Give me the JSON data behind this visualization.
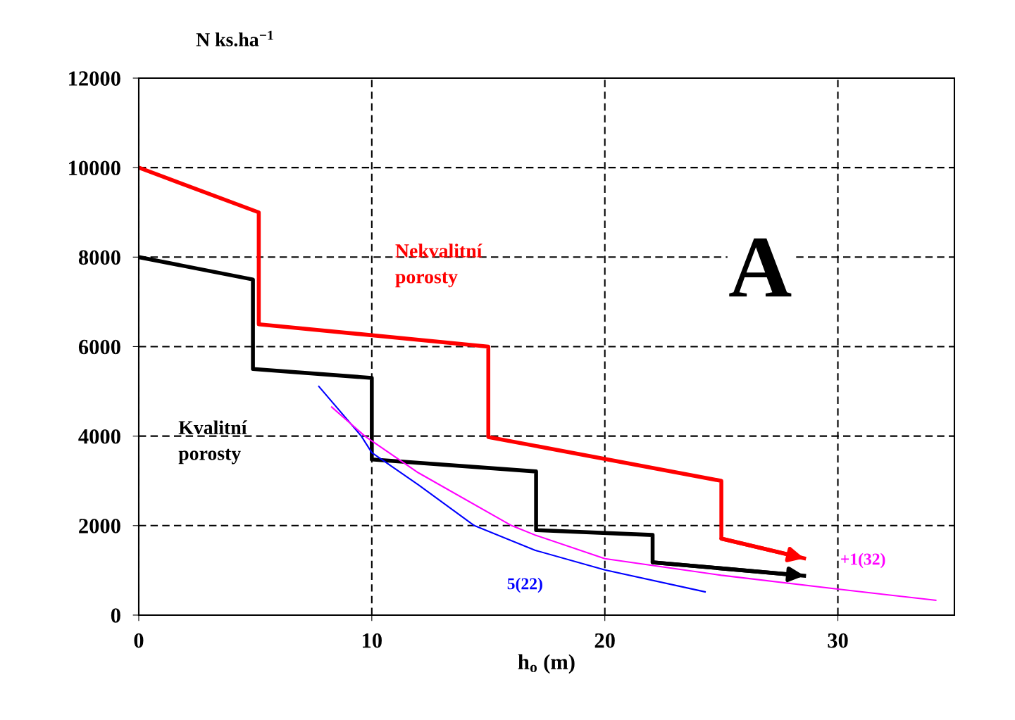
{
  "chart_data": {
    "type": "line",
    "xlabel": "h$_{o}$ (m)",
    "ylabel": "N ks.ha$^{−1}$",
    "xlim": [
      0,
      35
    ],
    "ylim": [
      0,
      12000
    ],
    "xticks": [
      0,
      10,
      20,
      30
    ],
    "yticks": [
      0,
      2000,
      4000,
      6000,
      8000,
      10000,
      12000
    ],
    "grid": true,
    "marker": "none",
    "line_style": "solid",
    "annotations": [
      "A"
    ],
    "series": [
      {
        "name": "Nekvalitní\nporosty",
        "color": "#ff0000",
        "type": "step",
        "x": [
          0,
          5.15,
          5.15,
          15,
          15,
          25,
          25,
          28.55
        ],
        "values": [
          10000,
          9000,
          6500,
          6000,
          3980,
          3000,
          1710,
          1270
        ]
      },
      {
        "name": "Kvalitní\nporosty",
        "color": "#000000",
        "type": "step",
        "x": [
          0,
          4.9,
          4.9,
          10,
          10,
          17.05,
          17.05,
          22.05,
          22.05,
          28.55
        ],
        "values": [
          8000,
          7500,
          5500,
          5300,
          3480,
          3210,
          1900,
          1790,
          1180,
          880
        ]
      },
      {
        "name": "5(22)",
        "color": "#0000ff",
        "x": [
          7.73,
          9.55,
          10,
          12,
          14.4,
          17,
          20,
          24.3
        ],
        "values": [
          5110,
          4000,
          3630,
          2910,
          2000,
          1450,
          1010,
          520
        ]
      },
      {
        "name": "+1(32)",
        "color": "#ff00ff",
        "x": [
          8.28,
          9.7,
          12,
          16,
          17,
          20,
          25,
          30,
          34.2
        ],
        "values": [
          4650,
          4000,
          3180,
          2000,
          1790,
          1260,
          890,
          580,
          330
        ]
      }
    ]
  }
}
